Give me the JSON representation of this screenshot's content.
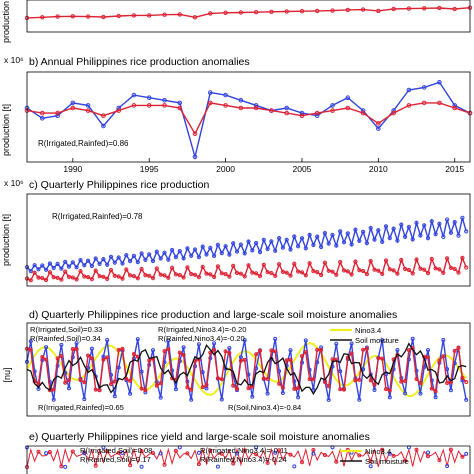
{
  "colors": {
    "irrigated": "#3344dd",
    "rainfed": "#dd2233",
    "nino": "#eeee22",
    "soil": "#111111"
  },
  "chart_data": [
    {
      "id": "a",
      "type": "line",
      "title": "",
      "ylabel": "production",
      "multiplier": "",
      "x": [
        1987,
        1988,
        1989,
        1990,
        1991,
        1992,
        1993,
        1994,
        1995,
        1996,
        1997,
        1998,
        1999,
        2000,
        2001,
        2002,
        2003,
        2004,
        2005,
        2006,
        2007,
        2008,
        2009,
        2010,
        2011,
        2012,
        2013,
        2014,
        2015,
        2016
      ],
      "series": [
        {
          "key": "rainfed",
          "values": [
            2.2,
            2.3,
            2.4,
            2.45,
            2.4,
            2.35,
            2.5,
            2.6,
            2.6,
            2.7,
            2.75,
            2.3,
            2.9,
            3.0,
            3.05,
            3.1,
            3.15,
            3.2,
            3.25,
            3.3,
            3.35,
            3.45,
            3.5,
            3.3,
            3.6,
            3.65,
            3.7,
            3.75,
            3.6,
            3.8
          ]
        }
      ],
      "ylim": [
        0,
        5
      ]
    },
    {
      "id": "b",
      "type": "line",
      "title": "b) Annual Philippines rice production anomalies",
      "ylabel": "production [t]",
      "multiplier": "x 10⁶",
      "xticks": [
        1990,
        1995,
        2000,
        2005,
        2010,
        2015
      ],
      "x": [
        1987,
        1988,
        1989,
        1990,
        1991,
        1992,
        1993,
        1994,
        1995,
        1996,
        1997,
        1998,
        1999,
        2000,
        2001,
        2002,
        2003,
        2004,
        2005,
        2006,
        2007,
        2008,
        2009,
        2010,
        2011,
        2012,
        2013,
        2014,
        2015,
        2016
      ],
      "series": [
        {
          "key": "irrigated",
          "values": [
            0.1,
            -0.3,
            -0.2,
            0.3,
            0.2,
            -0.6,
            0.1,
            0.6,
            0.5,
            0.4,
            0.3,
            -1.8,
            0.7,
            0.6,
            0.4,
            0.2,
            0.0,
            0.1,
            -0.1,
            -0.2,
            0.2,
            0.5,
            0.0,
            -0.7,
            0.0,
            0.8,
            0.9,
            1.1,
            0.2,
            -0.1
          ]
        },
        {
          "key": "rainfed",
          "values": [
            0.0,
            -0.1,
            -0.1,
            0.1,
            0.0,
            -0.2,
            0.0,
            0.2,
            0.2,
            0.2,
            0.1,
            -0.9,
            0.3,
            0.2,
            0.1,
            0.1,
            0.0,
            -0.1,
            -0.2,
            -0.1,
            0.0,
            0.1,
            -0.1,
            -0.5,
            -0.1,
            0.2,
            0.3,
            0.3,
            0.1,
            -0.1
          ]
        }
      ],
      "ylim": [
        -2,
        1.5
      ],
      "annotations": [
        "R(Irrigated,Rainfed)=0.86"
      ]
    },
    {
      "id": "c",
      "type": "line",
      "title": "c) Quarterly Philippines rice production",
      "ylabel": "production [t]",
      "multiplier": "x 10⁶",
      "x_range": [
        1987,
        2016
      ],
      "series": [
        {
          "key": "irrigated",
          "values": []
        },
        {
          "key": "rainfed",
          "values": []
        }
      ],
      "ylim": [
        0,
        6
      ],
      "annotations": [
        "R(Irrigated,Rainfed)=0.78"
      ]
    },
    {
      "id": "d",
      "type": "line",
      "title": "d) Quarterly Philippines rice production and large-scale soil moisture anomalies",
      "ylabel": "[nu]",
      "series": [
        {
          "key": "irrigated",
          "values": []
        },
        {
          "key": "rainfed",
          "values": []
        },
        {
          "key": "nino",
          "name": "Nino3.4",
          "values": []
        },
        {
          "key": "soil",
          "name": "Soil moisture",
          "values": []
        }
      ],
      "ylim": [
        -4,
        4
      ],
      "annotations": [
        "R(Irrigated,Soil)=0.33",
        "R(Rainfed,Soil)=0.34",
        "R(Irrigated,Nino3.4)=-0.20",
        "R(Rainfed,Nino3.4)=-0.20",
        "R(Irrigated,Rainfed)=0.65",
        "R(Soil,Nino3.4)=-0.84"
      ],
      "legend": [
        "Nino3.4",
        "Soil moisture"
      ]
    },
    {
      "id": "e",
      "type": "line",
      "title": "e) Quarterly Philippines rice yield and large-scale soil moisture anomalies",
      "ylabel": "",
      "annotations": [
        "R(Irrigated,Soil)=0.08",
        "R(Rainfed,Soil)=0.17",
        "R(Irrigated,Nino3.4)=-0.11",
        "R(Rainfed,Nino3.4)=-0.24"
      ],
      "legend": [
        "Nino3.4",
        "Soil moisture"
      ]
    }
  ]
}
